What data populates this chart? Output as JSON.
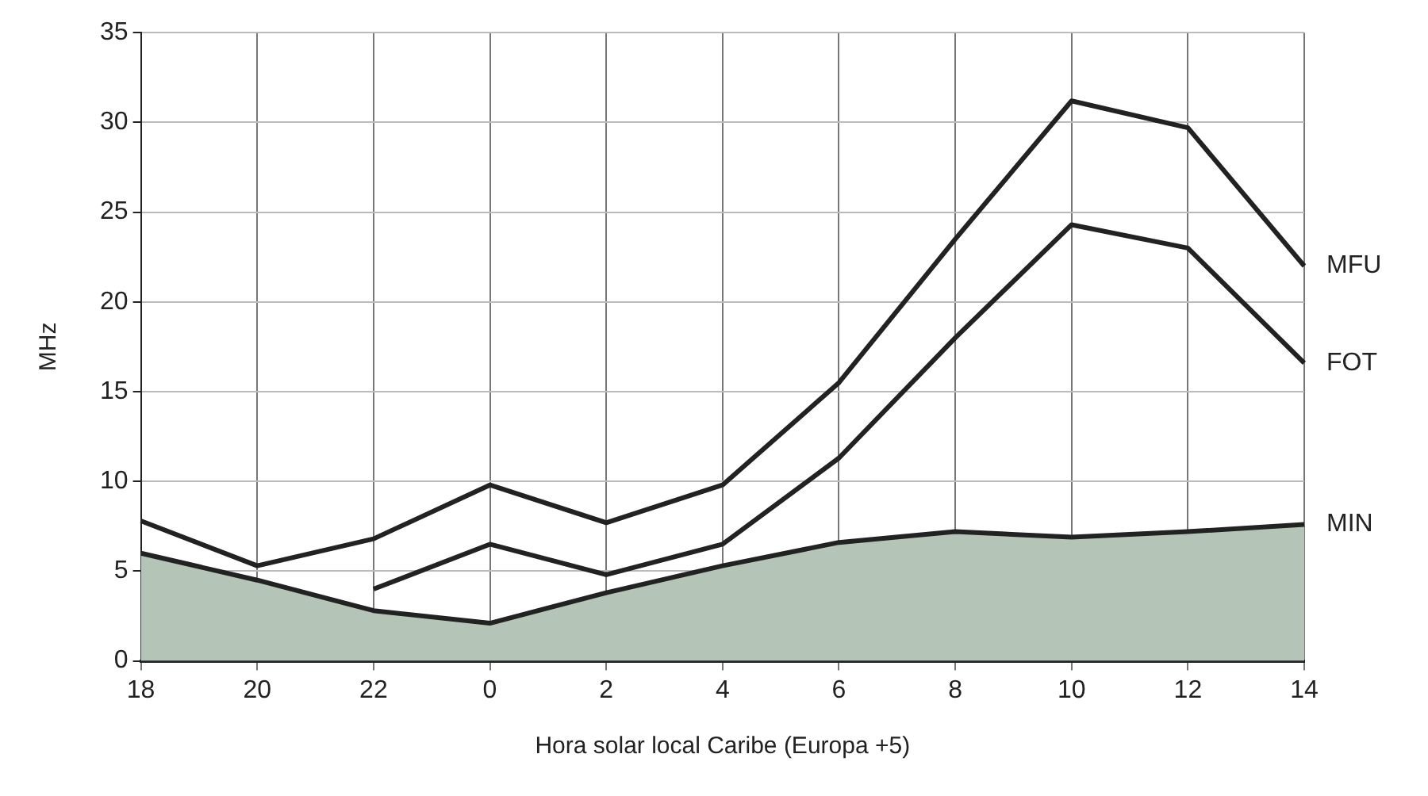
{
  "chart_data": {
    "type": "line",
    "xlabel": "Hora solar local Caribe (Europa +5)",
    "ylabel": "MHz",
    "categories": [
      "18",
      "20",
      "22",
      "0",
      "2",
      "4",
      "6",
      "8",
      "10",
      "12",
      "14"
    ],
    "series": [
      {
        "name": "MFU",
        "color": "#222222",
        "values": [
          7.8,
          5.3,
          6.8,
          9.8,
          7.7,
          9.8,
          15.5,
          23.5,
          31.2,
          29.7,
          22
        ]
      },
      {
        "name": "FOT",
        "color": "#222222",
        "values": [
          null,
          null,
          4,
          6.5,
          4.8,
          6.5,
          11.3,
          18,
          24.3,
          23,
          16.6
        ]
      },
      {
        "name": "MIN",
        "type": "area",
        "color": "#b4c4b6",
        "values": [
          6,
          4.5,
          2.8,
          2.1,
          3.8,
          5.3,
          6.6,
          7.2,
          6.9,
          7.2,
          7.6
        ]
      }
    ],
    "ylim": [
      0,
      35
    ],
    "yticks": [
      0,
      5,
      10,
      15,
      20,
      25,
      30,
      35
    ],
    "grid": true,
    "marker": "none",
    "line_style": "solid",
    "legend": false
  }
}
